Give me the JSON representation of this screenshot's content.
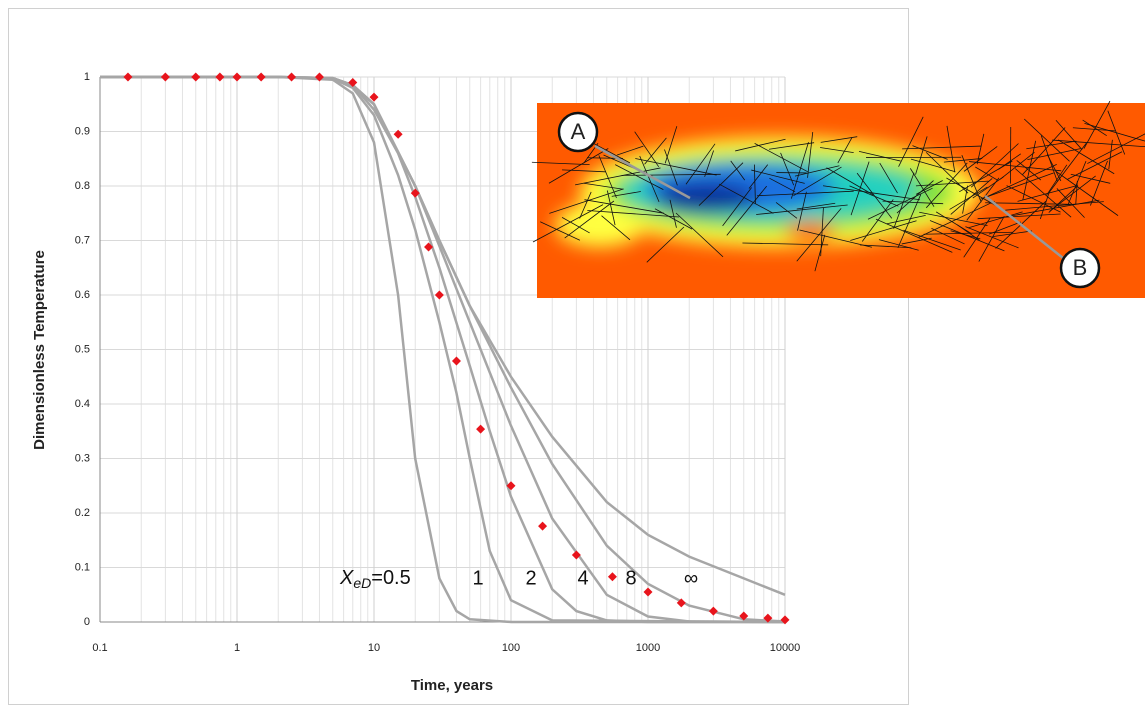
{
  "chart_data": {
    "type": "scatter",
    "xlabel": "Time, years",
    "ylabel": "Dimensionless Temperature",
    "xscale": "log",
    "xlim": [
      0.1,
      10000
    ],
    "ylim": [
      0,
      1
    ],
    "xticks": [
      0.1,
      1,
      10,
      100,
      1000,
      10000
    ],
    "xminorticks": [
      0.2,
      0.3,
      0.4,
      0.5,
      0.6,
      0.7,
      0.8,
      0.9,
      2,
      3,
      4,
      5,
      6,
      7,
      8,
      9,
      20,
      30,
      40,
      50,
      60,
      70,
      80,
      90,
      200,
      300,
      400,
      500,
      600,
      700,
      800,
      900,
      2000,
      3000,
      4000,
      5000,
      6000,
      7000,
      8000,
      9000
    ],
    "yticks": [
      0,
      0.1,
      0.2,
      0.3,
      0.4,
      0.5,
      0.6,
      0.7,
      0.8,
      0.9,
      1
    ],
    "grid": true,
    "curve_label": {
      "symbol": "X",
      "subscript": "eD",
      "relation": "="
    },
    "series": [
      {
        "name": "0.5",
        "type": "line",
        "color": "#a6a6a6",
        "x": [
          0.1,
          2,
          5,
          7,
          10,
          15,
          20,
          30,
          40,
          50,
          100,
          10000
        ],
        "values": [
          1,
          1,
          0.995,
          0.97,
          0.88,
          0.6,
          0.3,
          0.08,
          0.02,
          0.005,
          0,
          0
        ]
      },
      {
        "name": "1",
        "type": "line",
        "color": "#a6a6a6",
        "x": [
          0.1,
          2,
          5,
          7,
          10,
          15,
          20,
          30,
          40,
          50,
          70,
          100,
          200,
          10000
        ],
        "values": [
          1,
          1,
          0.997,
          0.98,
          0.93,
          0.82,
          0.72,
          0.55,
          0.42,
          0.3,
          0.13,
          0.04,
          0.003,
          0
        ]
      },
      {
        "name": "2",
        "type": "line",
        "color": "#a6a6a6",
        "x": [
          0.1,
          2,
          5,
          7,
          10,
          15,
          20,
          30,
          50,
          70,
          100,
          200,
          300,
          500,
          1000,
          10000
        ],
        "values": [
          1,
          1,
          0.998,
          0.985,
          0.94,
          0.86,
          0.78,
          0.65,
          0.47,
          0.35,
          0.23,
          0.06,
          0.02,
          0.003,
          0,
          0
        ]
      },
      {
        "name": "4",
        "type": "line",
        "color": "#a6a6a6",
        "x": [
          0.1,
          2,
          5,
          7,
          10,
          20,
          30,
          50,
          100,
          200,
          500,
          1000,
          2000,
          10000
        ],
        "values": [
          1,
          1,
          0.998,
          0.985,
          0.95,
          0.8,
          0.69,
          0.55,
          0.36,
          0.19,
          0.05,
          0.01,
          0.001,
          0
        ]
      },
      {
        "name": "8",
        "type": "line",
        "color": "#a6a6a6",
        "x": [
          0.1,
          2,
          5,
          7,
          10,
          20,
          30,
          50,
          100,
          200,
          500,
          1000,
          2000,
          5000,
          10000
        ],
        "values": [
          1,
          1,
          0.998,
          0.985,
          0.95,
          0.8,
          0.7,
          0.58,
          0.43,
          0.29,
          0.14,
          0.07,
          0.03,
          0.005,
          0.001
        ]
      },
      {
        "name": "∞",
        "type": "line",
        "color": "#a6a6a6",
        "x": [
          0.1,
          2,
          5,
          7,
          10,
          20,
          30,
          50,
          100,
          200,
          500,
          1000,
          2000,
          5000,
          10000
        ],
        "values": [
          1,
          1,
          0.998,
          0.985,
          0.95,
          0.8,
          0.7,
          0.58,
          0.45,
          0.34,
          0.22,
          0.16,
          0.12,
          0.08,
          0.05
        ]
      },
      {
        "type": "markers",
        "color": "#e8141c",
        "x": [
          0.16,
          0.3,
          0.5,
          0.75,
          1,
          1.5,
          2.5,
          4,
          7,
          10,
          15,
          20,
          25,
          30,
          40,
          60,
          100,
          170,
          300,
          550,
          1000,
          1750,
          3000,
          5000,
          7500,
          10000
        ],
        "values": [
          1,
          1,
          1,
          1,
          1,
          1,
          1,
          1,
          0.99,
          0.963,
          0.895,
          0.787,
          0.688,
          0.6,
          0.479,
          0.354,
          0.25,
          0.176,
          0.123,
          0.083,
          0.055,
          0.035,
          0.02,
          0.011,
          0.007,
          0.004
        ]
      }
    ]
  },
  "inset": {
    "labels": [
      "A",
      "B"
    ]
  }
}
